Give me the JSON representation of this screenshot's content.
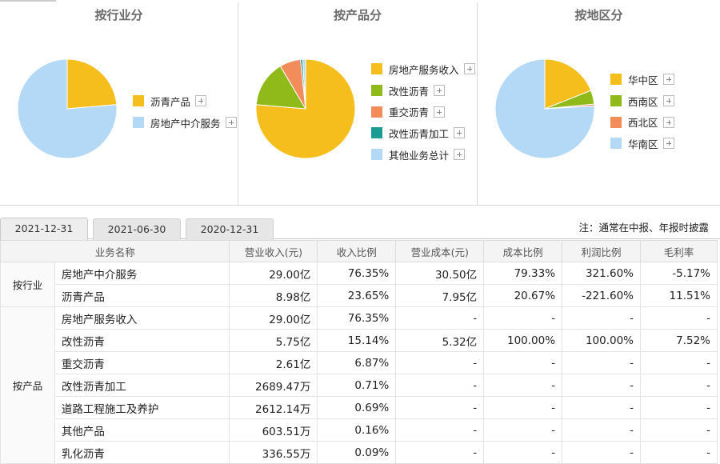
{
  "panels": [
    {
      "title": "按行业分",
      "legend": [
        {
          "label": "沥青产品",
          "color": "#f5be1c"
        },
        {
          "label": "房地产中介服务",
          "color": "#b3d9f7"
        }
      ],
      "chart_data": {
        "type": "pie",
        "labels": [
          "沥青产品",
          "房地产中介服务"
        ],
        "values": [
          23.65,
          76.35
        ],
        "colors": [
          "#f5be1c",
          "#b3d9f7"
        ]
      }
    },
    {
      "title": "按产品分",
      "legend": [
        {
          "label": "房地产服务收入",
          "color": "#f5be1c"
        },
        {
          "label": "改性沥青",
          "color": "#8fba1a"
        },
        {
          "label": "重交沥青",
          "color": "#f28c5a"
        },
        {
          "label": "改性沥青加工",
          "color": "#1a9c94"
        },
        {
          "label": "其他业务总计",
          "color": "#b3d9f7"
        }
      ],
      "chart_data": {
        "type": "pie",
        "labels": [
          "房地产服务收入",
          "改性沥青",
          "重交沥青",
          "改性沥青加工",
          "其他业务总计"
        ],
        "values": [
          76.35,
          15.14,
          6.87,
          0.71,
          0.93
        ],
        "colors": [
          "#f5be1c",
          "#8fba1a",
          "#f28c5a",
          "#1a9c94",
          "#b3d9f7"
        ]
      }
    },
    {
      "title": "按地区分",
      "legend": [
        {
          "label": "华中区",
          "color": "#f5be1c"
        },
        {
          "label": "西南区",
          "color": "#8fba1a"
        },
        {
          "label": "西北区",
          "color": "#f28c5a"
        },
        {
          "label": "华南区",
          "color": "#b3d9f7"
        }
      ],
      "chart_data": {
        "type": "pie",
        "labels": [
          "华中区",
          "西南区",
          "西北区",
          "华南区"
        ],
        "values": [
          19.0,
          4.5,
          0.6,
          75.9
        ],
        "colors": [
          "#f5be1c",
          "#8fba1a",
          "#f28c5a",
          "#b3d9f7"
        ]
      }
    }
  ],
  "tabs": [
    "2021-12-31",
    "2021-06-30",
    "2020-12-31"
  ],
  "note": "注：通常在中报、年报时披露",
  "table": {
    "headers": [
      "业务名称",
      "营业收入(元)",
      "收入比例",
      "营业成本(元)",
      "成本比例",
      "利润比例",
      "毛利率"
    ],
    "groups": [
      {
        "label": "按行业",
        "rows": [
          [
            "房地产中介服务",
            "29.00亿",
            "76.35%",
            "30.50亿",
            "79.33%",
            "321.60%",
            "-5.17%"
          ],
          [
            "沥青产品",
            "8.98亿",
            "23.65%",
            "7.95亿",
            "20.67%",
            "-221.60%",
            "11.51%"
          ]
        ]
      },
      {
        "label": "按产品",
        "rows": [
          [
            "房地产服务收入",
            "29.00亿",
            "76.35%",
            "-",
            "-",
            "-",
            "-"
          ],
          [
            "改性沥青",
            "5.75亿",
            "15.14%",
            "5.32亿",
            "100.00%",
            "100.00%",
            "7.52%"
          ],
          [
            "重交沥青",
            "2.61亿",
            "6.87%",
            "-",
            "-",
            "-",
            "-"
          ],
          [
            "改性沥青加工",
            "2689.47万",
            "0.71%",
            "-",
            "-",
            "-",
            "-"
          ],
          [
            "道路工程施工及养护",
            "2612.14万",
            "0.69%",
            "-",
            "-",
            "-",
            "-"
          ],
          [
            "其他产品",
            "603.51万",
            "0.16%",
            "-",
            "-",
            "-",
            "-"
          ],
          [
            "乳化沥青",
            "336.55万",
            "0.09%",
            "-",
            "-",
            "-",
            "-"
          ]
        ]
      }
    ]
  }
}
